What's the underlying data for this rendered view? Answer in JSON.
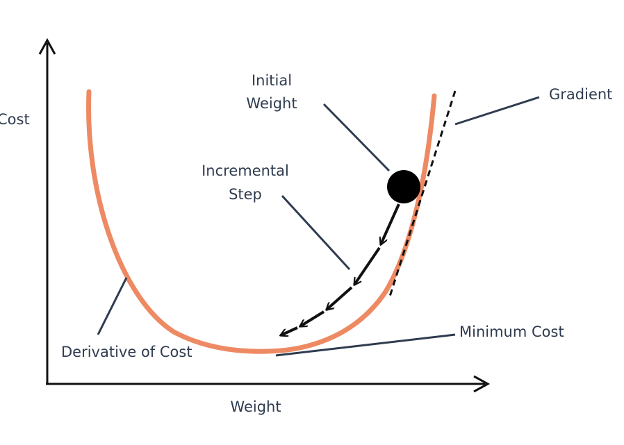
{
  "diagram": {
    "axes": {
      "y_label": "Cost",
      "x_label": "Weight"
    },
    "labels": {
      "initial_weight_line1": "Initial",
      "initial_weight_line2": "Weight",
      "incremental_step_line1": "Incremental",
      "incremental_step_line2": "Step",
      "gradient": "Gradient",
      "minimum_cost": "Minimum Cost",
      "derivative_of_cost": "Derivative of Cost"
    },
    "colors": {
      "curve": "#ee8a63",
      "axes": "#111111",
      "leader_lines": "#2f3b4f",
      "text": "#2f3b4f",
      "ball": "#000000"
    }
  }
}
